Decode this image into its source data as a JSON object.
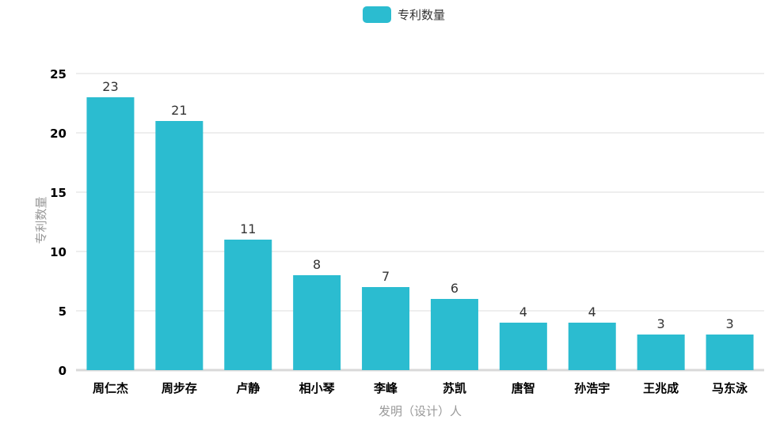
{
  "colors": {
    "bar": "#2bbcd0",
    "grid": "#dddddd",
    "axis": "#d9d9d9"
  },
  "chart_data": {
    "type": "bar",
    "title": "",
    "legend": {
      "position": "top-center",
      "entries": [
        "专利数量"
      ]
    },
    "xlabel": "发明（设计）人",
    "ylabel": "专利数量",
    "ylim": [
      0,
      25
    ],
    "yticks": [
      0,
      5,
      10,
      15,
      20,
      25
    ],
    "grid": true,
    "categories": [
      "周仁杰",
      "周步存",
      "卢静",
      "相小琴",
      "李峰",
      "苏凯",
      "唐智",
      "孙浩宇",
      "王兆成",
      "马东泳"
    ],
    "series": [
      {
        "name": "专利数量",
        "values": [
          23,
          21,
          11,
          8,
          7,
          6,
          4,
          4,
          3,
          3
        ]
      }
    ]
  }
}
